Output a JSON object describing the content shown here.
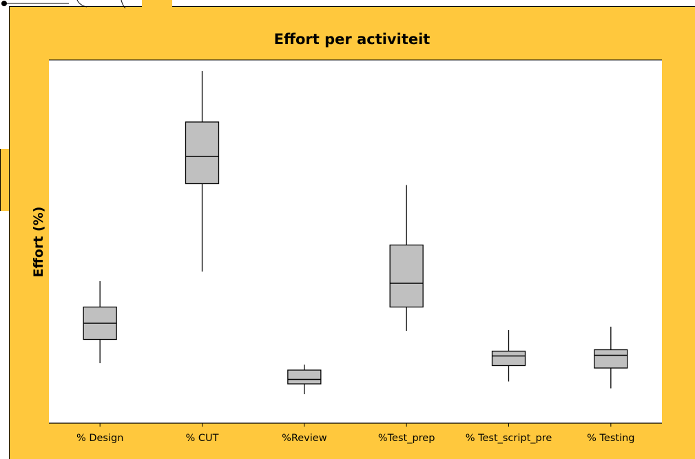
{
  "chart_data": {
    "type": "boxplot",
    "title": "Effort per activiteit",
    "xlabel": "",
    "ylabel": "Effort (%)",
    "categories": [
      "% Design",
      "% CUT",
      "%Review",
      "%Test_prep",
      "% Test_script_pre",
      "% Testing"
    ],
    "ylim": [
      0,
      100
    ],
    "grid": false,
    "y_tick_labels_visible": false,
    "boxes": [
      {
        "whisker_low": 14.6,
        "q1": 21.5,
        "median": 26.2,
        "q3": 30.9,
        "whisker_high": 38.4
      },
      {
        "whisker_low": 41.2,
        "q1": 66.7,
        "median": 74.6,
        "q3": 84.6,
        "whisker_high": 99.4
      },
      {
        "whisker_low": 5.6,
        "q1": 8.6,
        "median": 9.9,
        "q3": 12.6,
        "whisker_high": 14.2
      },
      {
        "whisker_low": 24.0,
        "q1": 30.9,
        "median": 37.8,
        "q3": 48.9,
        "whisker_high": 66.3
      },
      {
        "whisker_low": 9.3,
        "q1": 13.9,
        "median": 16.7,
        "q3": 18.1,
        "whisker_high": 24.2
      },
      {
        "whisker_low": 7.3,
        "q1": 13.2,
        "median": 16.9,
        "q3": 18.5,
        "whisker_high": 25.2
      }
    ],
    "colors": {
      "background": "#FFC83D",
      "plot_area": "#FFFFFF",
      "box_fill": "#C0C0C0",
      "line": "#000000"
    }
  }
}
